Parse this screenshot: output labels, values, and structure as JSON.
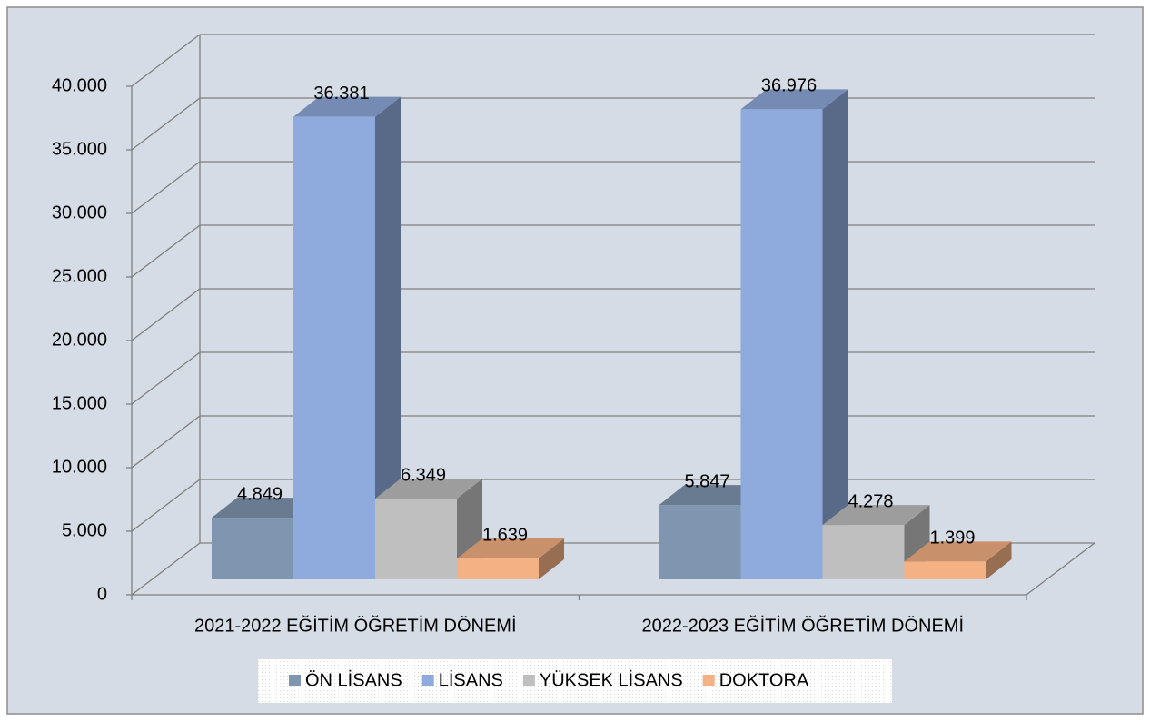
{
  "chart_data": {
    "type": "bar3d",
    "categories": [
      "2021-2022 EĞİTİM ÖĞRETİM DÖNEMİ",
      "2022-2023 EĞİTİM ÖĞRETİM DÖNEMİ"
    ],
    "series": [
      {
        "name": "ÖN LİSANS",
        "color": "#8096b0",
        "values": [
          4849,
          5847
        ],
        "value_labels": [
          "4.849",
          "5.847"
        ]
      },
      {
        "name": "LİSANS",
        "color": "#8faadc",
        "values": [
          36381,
          36976
        ],
        "value_labels": [
          "36.381",
          "36.976"
        ]
      },
      {
        "name": "YÜKSEK LİSANS",
        "color": "#bfbfbf",
        "values": [
          6349,
          4278
        ],
        "value_labels": [
          "6.349",
          "4.278"
        ]
      },
      {
        "name": "DOKTORA",
        "color": "#f4b183",
        "values": [
          1639,
          1399
        ],
        "value_labels": [
          "1.639",
          "1.399"
        ]
      }
    ],
    "ylim": [
      0,
      40000
    ],
    "yticks": [
      0,
      {
        "value": 5000,
        "label": "5.000"
      },
      {
        "value": 10000,
        "label": "10.000"
      },
      {
        "value": 15000,
        "label": "15.000"
      },
      {
        "value": 20000,
        "label": "20.000"
      },
      {
        "value": 25000,
        "label": "25.000"
      },
      {
        "value": 30000,
        "label": "30.000"
      },
      {
        "value": 35000,
        "label": "35.000"
      },
      {
        "value": 40000,
        "label": "40.000"
      }
    ],
    "grid": true,
    "legend": "bottom"
  }
}
